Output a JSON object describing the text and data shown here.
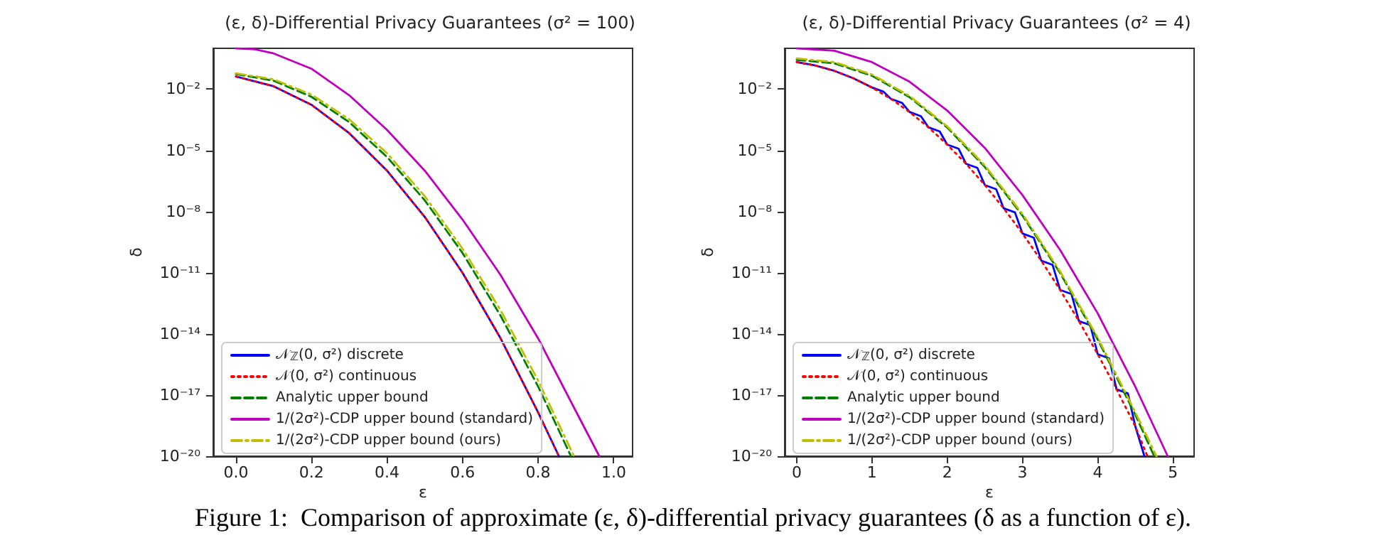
{
  "chart_data": [
    {
      "type": "line",
      "title": "(ε, δ)-Differential Privacy Guarantees (σ² = 100)",
      "xlabel": "ε",
      "ylabel": "δ",
      "log": "y",
      "grid": false,
      "legend": "bottom left",
      "marker": "none",
      "xlim": [
        -0.06,
        1.05
      ],
      "xticks": [
        {
          "value": 0,
          "label": "0.0"
        },
        {
          "value": 0.2,
          "label": "0.2"
        },
        {
          "value": 0.4,
          "label": "0.4"
        },
        {
          "value": 0.6,
          "label": "0.6"
        },
        {
          "value": 0.8,
          "label": "0.8"
        },
        {
          "value": 1,
          "label": "1.0"
        }
      ],
      "ylim": [
        1e-20,
        1
      ],
      "yticks": [
        {
          "value": 0.01,
          "label": "10⁻²"
        },
        {
          "value": 1e-05,
          "label": "10⁻⁵"
        },
        {
          "value": 1e-08,
          "label": "10⁻⁸"
        },
        {
          "value": 1e-11,
          "label": "10⁻¹¹"
        },
        {
          "value": 1e-14,
          "label": "10⁻¹⁴"
        },
        {
          "value": 1e-17,
          "label": "10⁻¹⁷"
        },
        {
          "value": 1e-20,
          "label": "10⁻²⁰"
        }
      ],
      "annotations": [
        "Figure 1:  Comparison of approximate (ε, δ)-differential privacy guarantees (δ as a function of ε)."
      ],
      "series": [
        {
          "name": "𝒩$_{ℤ}$(0, σ²) discrete",
          "color": "#0000ff",
          "line_style": "solid",
          "x": [
            0,
            0.1,
            0.2,
            0.3,
            0.4,
            0.5,
            0.6,
            0.7,
            0.8,
            0.855
          ],
          "values": [
            0.0417,
            0.0138,
            0.0017,
            6.9e-05,
            1e-06,
            5.4e-09,
            9.8e-12,
            6.3e-15,
            1.4e-18,
            1e-20
          ]
        },
        {
          "name": "𝒩(0, σ²) continuous",
          "color": "#ff0000",
          "line_style": "dotted",
          "x": [
            0,
            0.1,
            0.2,
            0.3,
            0.4,
            0.5,
            0.6,
            0.7,
            0.8,
            0.855
          ],
          "values": [
            0.0417,
            0.0138,
            0.0017,
            6.9e-05,
            1e-06,
            5.4e-09,
            9.8e-12,
            6.3e-15,
            1.4e-18,
            1e-20
          ]
        },
        {
          "name": "Analytic upper bound",
          "color": "#008000",
          "line_style": "dashed",
          "x": [
            0,
            0.1,
            0.2,
            0.3,
            0.4,
            0.5,
            0.6,
            0.7,
            0.8,
            0.887
          ],
          "values": [
            0.055,
            0.0257,
            0.0042,
            0.00024,
            4.7e-06,
            3.5e-08,
            9.1e-11,
            8.1e-14,
            2.6e-17,
            1e-20
          ]
        },
        {
          "name": "1/(2σ²)-CDP upper bound (standard)",
          "color": "#bf00bf",
          "line_style": "solid",
          "x": [
            0,
            0.05,
            0.1,
            0.2,
            0.3,
            0.4,
            0.5,
            0.6,
            0.7,
            0.8,
            0.9,
            0.962
          ],
          "values": [
            1,
            0.89,
            0.56,
            0.1,
            0.005,
            0.0001,
            1e-06,
            4e-09,
            8e-12,
            6e-15,
            1.6e-18,
            1e-20
          ]
        },
        {
          "name": "1/(2σ²)-CDP upper bound (ours)",
          "color": "#bfbf00",
          "line_style": "dashdot",
          "x": [
            0,
            0.1,
            0.2,
            0.3,
            0.4,
            0.5,
            0.6,
            0.7,
            0.8,
            0.895
          ],
          "values": [
            0.06,
            0.03,
            0.0054,
            0.00033,
            7.2e-06,
            5.6e-08,
            1.5e-10,
            1.5e-13,
            5.1e-17,
            1e-20
          ]
        }
      ]
    },
    {
      "type": "line",
      "title": "(ε, δ)-Differential Privacy Guarantees (σ² = 4)",
      "xlabel": "ε",
      "ylabel": "δ",
      "log": "y",
      "grid": false,
      "legend": "bottom left",
      "marker": "none",
      "xlim": [
        -0.16,
        5.28
      ],
      "xticks": [
        0,
        1,
        2,
        3,
        4,
        5
      ],
      "ylim": [
        1e-20,
        1
      ],
      "yticks": [
        {
          "value": 0.01,
          "label": "10⁻²"
        },
        {
          "value": 1e-05,
          "label": "10⁻⁵"
        },
        {
          "value": 1e-08,
          "label": "10⁻⁸"
        },
        {
          "value": 1e-11,
          "label": "10⁻¹¹"
        },
        {
          "value": 1e-14,
          "label": "10⁻¹⁴"
        },
        {
          "value": 1e-17,
          "label": "10⁻¹⁷"
        },
        {
          "value": 1e-20,
          "label": "10⁻²⁰"
        }
      ],
      "series": [
        {
          "name": "𝒩$_{ℤ}$(0, σ²) discrete",
          "color": "#0000ff",
          "line_style": "solid",
          "x": [
            0,
            0.25,
            0.5,
            0.75,
            1,
            1.15,
            1.25,
            1.4,
            1.5,
            1.65,
            1.75,
            1.9,
            2,
            2.15,
            2.25,
            2.4,
            2.5,
            2.65,
            2.75,
            2.9,
            3,
            3.15,
            3.25,
            3.4,
            3.5,
            3.65,
            3.75,
            3.9,
            4,
            4.15,
            4.25,
            4.4,
            4.5,
            4.62
          ],
          "values": [
            0.21,
            0.143,
            0.0785,
            0.0344,
            0.012,
            0.0076,
            0.00336,
            0.0021,
            0.00075,
            0.00047,
            0.000134,
            8.4e-05,
            1.9e-05,
            1.2e-05,
            2.17e-06,
            1.37e-06,
            1.97e-07,
            1.24e-07,
            1.43e-08,
            9e-09,
            8.3e-10,
            5.2e-10,
            3.85e-11,
            2.4e-11,
            1.43e-12,
            9e-13,
            4.2e-14,
            2.7e-14,
            1e-15,
            6.3e-16,
            1.9e-17,
            1.2e-17,
            2.85e-19,
            1e-20
          ]
        },
        {
          "name": "𝒩(0, σ²) continuous",
          "color": "#ff0000",
          "line_style": "dotted",
          "x": [
            0,
            0.25,
            0.5,
            0.75,
            1,
            1.25,
            1.5,
            1.75,
            2,
            2.25,
            2.5,
            2.75,
            3,
            3.25,
            3.5,
            3.75,
            4,
            4.25,
            4.5,
            4.66
          ],
          "values": [
            0.21,
            0.143,
            0.0785,
            0.0344,
            0.012,
            0.00336,
            0.00075,
            0.000134,
            1.9e-05,
            2.17e-06,
            1.97e-07,
            1.43e-08,
            8.3e-10,
            3.85e-11,
            1.43e-12,
            4.2e-14,
            1e-15,
            1.9e-17,
            2.85e-19,
            1e-20
          ]
        },
        {
          "name": "Analytic upper bound",
          "color": "#008000",
          "line_style": "dashed",
          "x": [
            0,
            0.5,
            1,
            1.5,
            2,
            2.5,
            3,
            3.5,
            4,
            4.5,
            4.75
          ],
          "values": [
            0.27,
            0.184,
            0.045,
            0.004,
            0.00013,
            1.5e-06,
            6.3e-09,
            9.6e-12,
            5.3e-15,
            1.05e-18,
            1e-20
          ]
        },
        {
          "name": "1/(2σ²)-CDP upper bound (standard)",
          "color": "#bf00bf",
          "line_style": "solid",
          "x": [
            0,
            0.5,
            1,
            1.5,
            2,
            2.5,
            3,
            3.5,
            4,
            4.5,
            4.93
          ],
          "values": [
            1,
            0.76,
            0.21,
            0.023,
            0.00089,
            1.3e-05,
            6.3e-08,
            1.3e-10,
            1e-13,
            2.5e-17,
            1e-20
          ]
        },
        {
          "name": "1/(2σ²)-CDP upper bound (ours)",
          "color": "#bfbf00",
          "line_style": "dashdot",
          "x": [
            0,
            0.5,
            1,
            1.5,
            2,
            2.5,
            3,
            3.5,
            4,
            4.5,
            4.78
          ],
          "values": [
            0.32,
            0.21,
            0.052,
            0.0046,
            0.00015,
            1.8e-06,
            7.5e-09,
            1.15e-11,
            6.5e-15,
            1.4e-18,
            1e-20
          ]
        }
      ]
    }
  ]
}
